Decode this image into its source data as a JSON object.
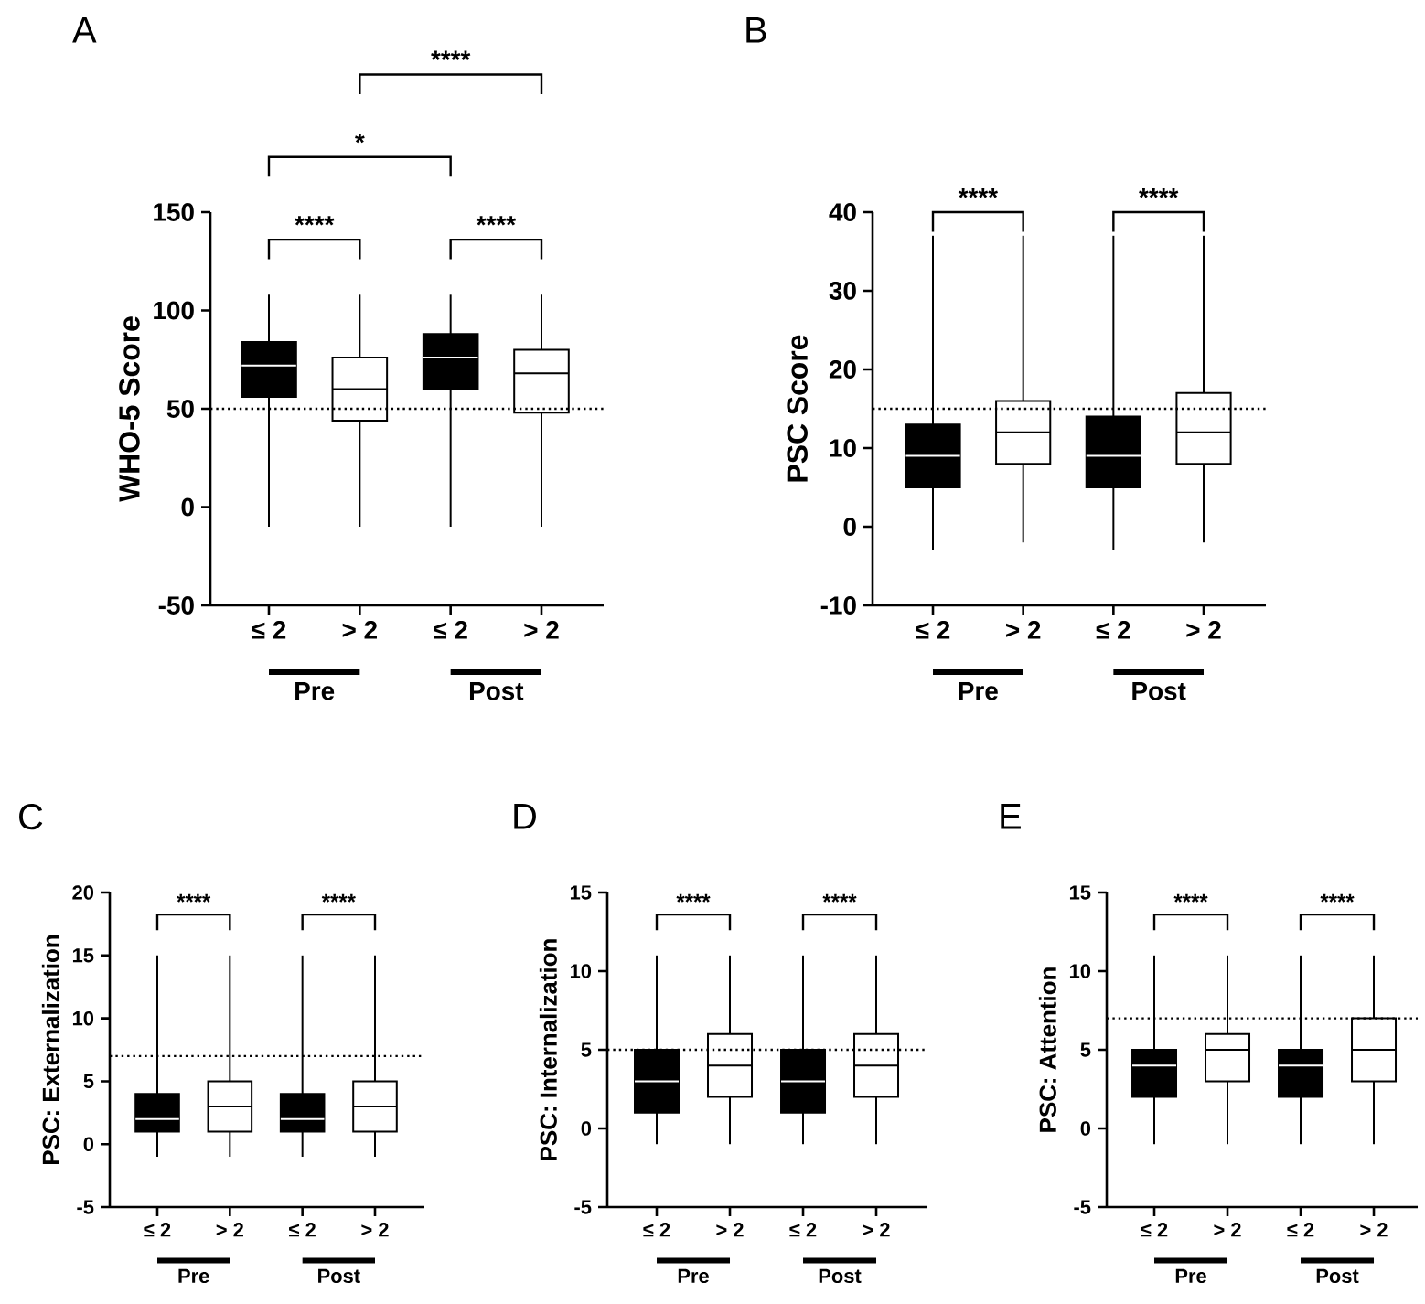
{
  "chart_data": [
    {
      "type": "box",
      "title": "A",
      "ylabel": "WHO-5 Score",
      "categories": [
        "≤ 2",
        "> 2",
        "≤ 2",
        "> 2"
      ],
      "colors": [
        "#000000",
        "#ffffff",
        "#000000",
        "#ffffff"
      ],
      "ylim": [
        -50,
        150
      ],
      "yticks": [
        -50,
        0,
        50,
        100,
        150
      ],
      "boxes": [
        {
          "low": -10,
          "q1": 56,
          "median": 72,
          "q3": 84,
          "high": 108
        },
        {
          "low": -10,
          "q1": 44,
          "median": 60,
          "q3": 76,
          "high": 108
        },
        {
          "low": -10,
          "q1": 60,
          "median": 76,
          "q3": 88,
          "high": 108
        },
        {
          "low": -10,
          "q1": 48,
          "median": 68,
          "q3": 80,
          "high": 108
        }
      ],
      "ref_lines": [
        {
          "axis": "y",
          "value": 50,
          "line_style": "dotted"
        }
      ],
      "annotations": [
        "****",
        "****",
        "*",
        "****",
        "Pre",
        "Post"
      ]
    },
    {
      "type": "box",
      "title": "B",
      "ylabel": "PSC Score",
      "categories": [
        "≤ 2",
        "> 2",
        "≤ 2",
        "> 2"
      ],
      "colors": [
        "#000000",
        "#ffffff",
        "#000000",
        "#ffffff"
      ],
      "ylim": [
        -10,
        40
      ],
      "yticks": [
        -10,
        0,
        10,
        20,
        30,
        40
      ],
      "boxes": [
        {
          "low": -3,
          "q1": 5,
          "median": 9,
          "q3": 13,
          "high": 37
        },
        {
          "low": -2,
          "q1": 8,
          "median": 12,
          "q3": 16,
          "high": 37
        },
        {
          "low": -3,
          "q1": 5,
          "median": 9,
          "q3": 14,
          "high": 37
        },
        {
          "low": -2,
          "q1": 8,
          "median": 12,
          "q3": 17,
          "high": 37
        }
      ],
      "ref_lines": [
        {
          "axis": "y",
          "value": 15,
          "line_style": "dotted"
        }
      ],
      "annotations": [
        "****",
        "****",
        "Pre",
        "Post"
      ]
    },
    {
      "type": "box",
      "title": "C",
      "ylabel": "PSC: Externalization",
      "categories": [
        "≤ 2",
        "> 2",
        "≤ 2",
        "> 2"
      ],
      "colors": [
        "#000000",
        "#ffffff",
        "#000000",
        "#ffffff"
      ],
      "ylim": [
        -5,
        20
      ],
      "yticks": [
        -5,
        0,
        5,
        10,
        15,
        20
      ],
      "boxes": [
        {
          "low": -1,
          "q1": 1,
          "median": 2,
          "q3": 4,
          "high": 15
        },
        {
          "low": -1,
          "q1": 1,
          "median": 3,
          "q3": 5,
          "high": 15
        },
        {
          "low": -1,
          "q1": 1,
          "median": 2,
          "q3": 4,
          "high": 15
        },
        {
          "low": -1,
          "q1": 1,
          "median": 3,
          "q3": 5,
          "high": 15
        }
      ],
      "ref_lines": [
        {
          "axis": "y",
          "value": 7,
          "line_style": "dotted"
        }
      ],
      "annotations": [
        "****",
        "****",
        "Pre",
        "Post"
      ]
    },
    {
      "type": "box",
      "title": "D",
      "ylabel": "PSC: Internalization",
      "categories": [
        "≤ 2",
        "> 2",
        "≤ 2",
        "> 2"
      ],
      "colors": [
        "#000000",
        "#ffffff",
        "#000000",
        "#ffffff"
      ],
      "ylim": [
        -5,
        15
      ],
      "yticks": [
        -5,
        0,
        5,
        10,
        15
      ],
      "boxes": [
        {
          "low": -1,
          "q1": 1,
          "median": 3,
          "q3": 5,
          "high": 11
        },
        {
          "low": -1,
          "q1": 2,
          "median": 4,
          "q3": 6,
          "high": 11
        },
        {
          "low": -1,
          "q1": 1,
          "median": 3,
          "q3": 5,
          "high": 11
        },
        {
          "low": -1,
          "q1": 2,
          "median": 4,
          "q3": 6,
          "high": 11
        }
      ],
      "ref_lines": [
        {
          "axis": "y",
          "value": 5,
          "line_style": "dotted"
        }
      ],
      "annotations": [
        "****",
        "****",
        "Pre",
        "Post"
      ]
    },
    {
      "type": "box",
      "title": "E",
      "ylabel": "PSC: Attention",
      "categories": [
        "≤ 2",
        "> 2",
        "≤ 2",
        "> 2"
      ],
      "colors": [
        "#000000",
        "#ffffff",
        "#000000",
        "#ffffff"
      ],
      "ylim": [
        -5,
        15
      ],
      "yticks": [
        -5,
        0,
        5,
        10,
        15
      ],
      "boxes": [
        {
          "low": -1,
          "q1": 2,
          "median": 4,
          "q3": 5,
          "high": 11
        },
        {
          "low": -1,
          "q1": 3,
          "median": 5,
          "q3": 6,
          "high": 11
        },
        {
          "low": -1,
          "q1": 2,
          "median": 4,
          "q3": 5,
          "high": 11
        },
        {
          "low": -1,
          "q1": 3,
          "median": 5,
          "q3": 7,
          "high": 11
        }
      ],
      "ref_lines": [
        {
          "axis": "y",
          "value": 7,
          "line_style": "dotted"
        }
      ],
      "annotations": [
        "****",
        "****",
        "Pre",
        "Post"
      ]
    }
  ]
}
